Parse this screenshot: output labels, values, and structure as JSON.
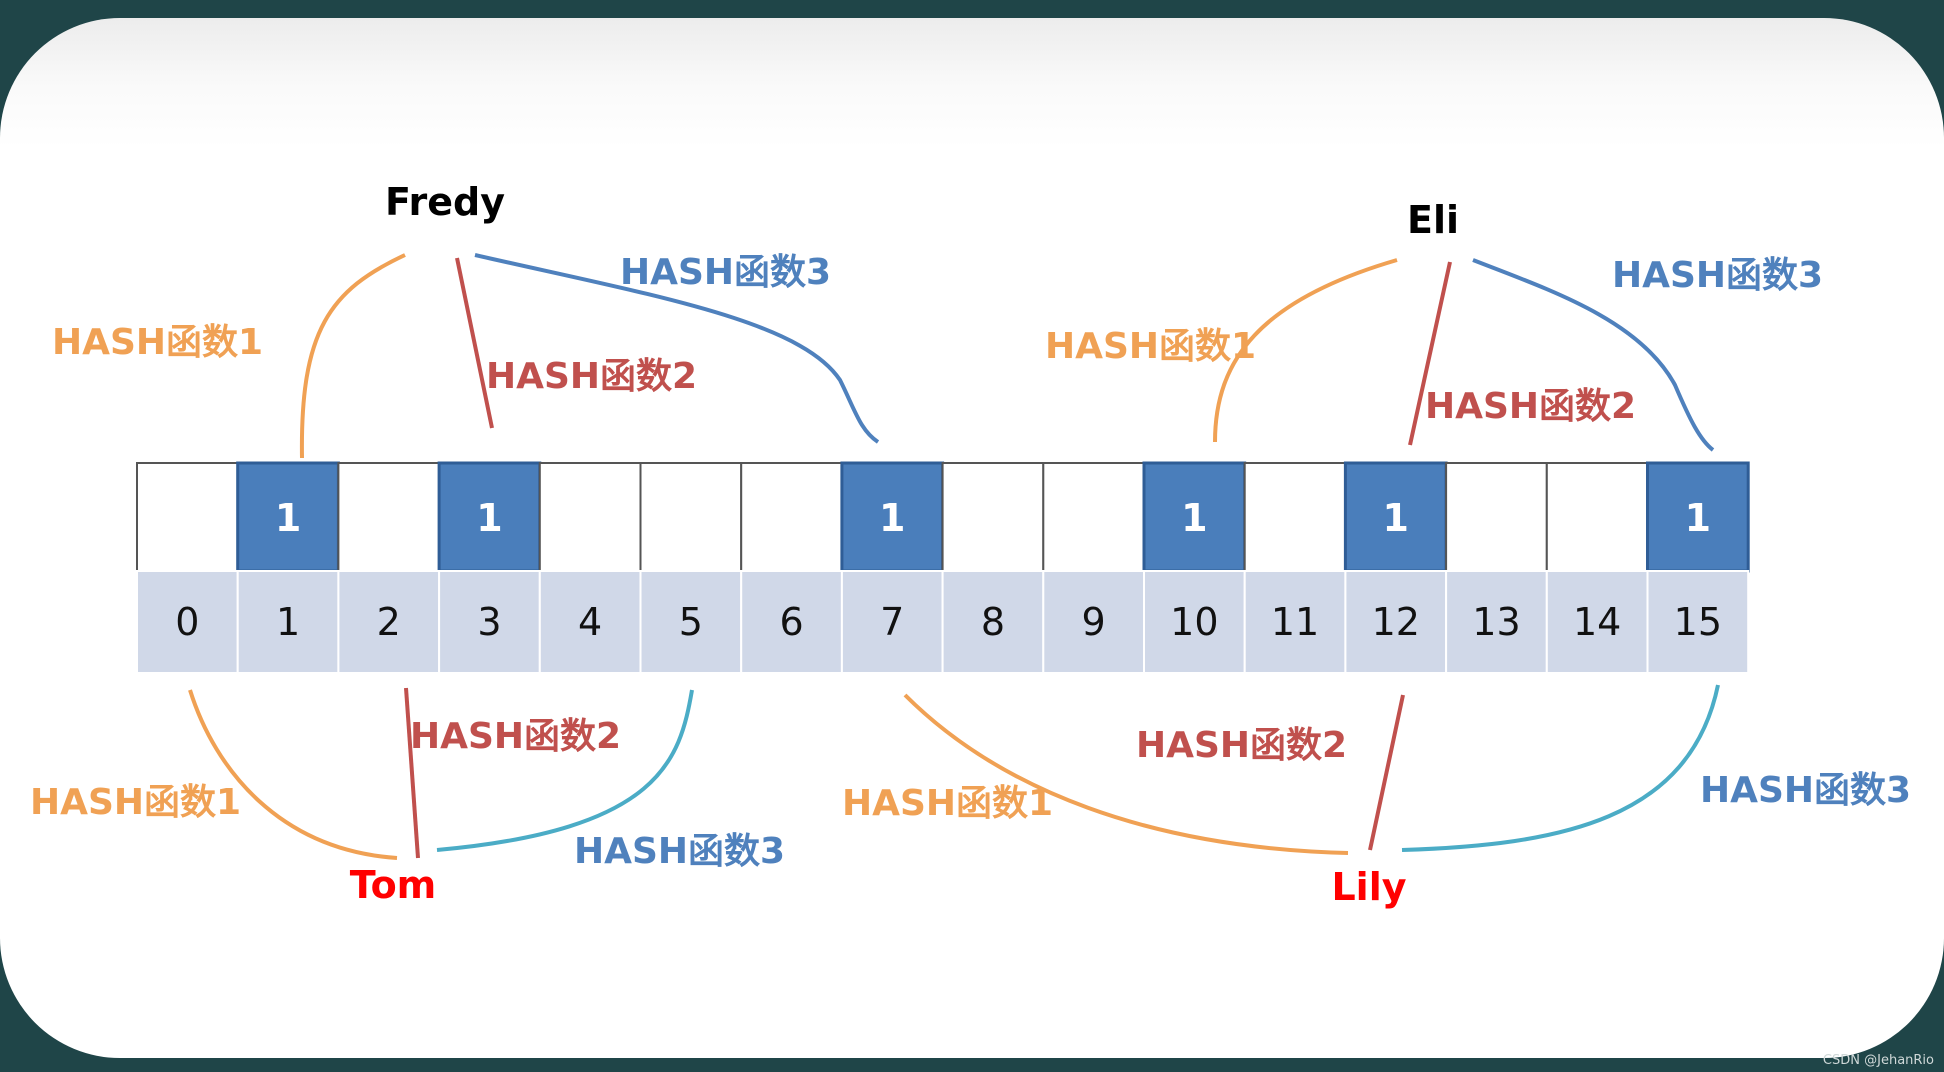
{
  "bitmap": {
    "bits": [
      "",
      "1",
      "",
      "1",
      "",
      "",
      "",
      "1",
      "",
      "",
      "1",
      "",
      "1",
      "",
      "",
      "1"
    ],
    "indices": [
      "0",
      "1",
      "2",
      "3",
      "4",
      "5",
      "6",
      "7",
      "8",
      "9",
      "10",
      "11",
      "12",
      "13",
      "14",
      "15"
    ]
  },
  "elements": {
    "fredy": "Fredy",
    "eli": "Eli",
    "tom": "Tom",
    "lily": "Lily"
  },
  "labels": {
    "fredy_h1": "HASH函数1",
    "fredy_h2": "HASH函数2",
    "fredy_h3": "HASH函数3",
    "eli_h1": "HASH函数1",
    "eli_h2": "HASH函数2",
    "eli_h3": "HASH函数3",
    "tom_h1": "HASH函数1",
    "tom_h2": "HASH函数2",
    "tom_h3": "HASH函数3",
    "lily_h1": "HASH函数1",
    "lily_h2": "HASH函数2",
    "lily_h3": "HASH函数3"
  },
  "colors": {
    "hash1": "#f0a154",
    "hash2": "#c0504d",
    "hash3_line": "#4bacc6",
    "hash3_line_top": "#4f81bd",
    "hash3_label": "#4f81bd",
    "set_bit": "#4a7ebb",
    "index_bg": "#d0d8e8",
    "query_name": "#ff0000",
    "insert_name": "#000000"
  },
  "watermark": "CSDN @JehanRio"
}
